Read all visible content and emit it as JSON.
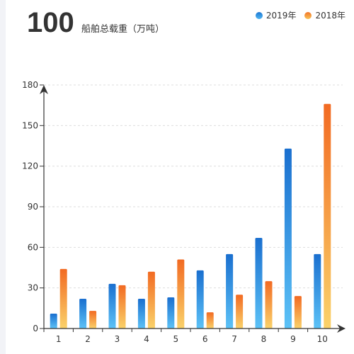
{
  "header": {
    "value": "100",
    "label": "船舶总载重（万吨）"
  },
  "legend": [
    {
      "name": "2019年",
      "color": "#2a86de"
    },
    {
      "name": "2018年",
      "color": "#f5882d"
    }
  ],
  "chart_data": {
    "type": "bar",
    "categories": [
      "1",
      "2",
      "3",
      "4",
      "5",
      "6",
      "7",
      "8",
      "9",
      "10"
    ],
    "series": [
      {
        "name": "2019年",
        "values": [
          11,
          22,
          33,
          22,
          23,
          43,
          55,
          67,
          133,
          55
        ]
      },
      {
        "name": "2018年",
        "values": [
          44,
          13,
          32,
          42,
          51,
          12,
          25,
          35,
          24,
          166
        ]
      }
    ],
    "title": "",
    "xlabel": "",
    "ylabel": "",
    "ylim": [
      0,
      180
    ],
    "yticks": [
      0,
      30,
      60,
      90,
      120,
      150,
      180
    ],
    "grid": true,
    "legend_position": "top-right"
  }
}
